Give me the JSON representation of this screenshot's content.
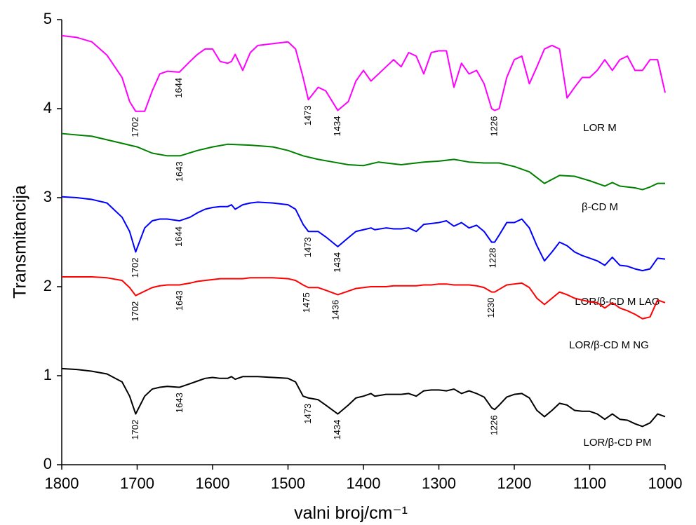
{
  "chart_data": {
    "type": "line",
    "y_label": "Transmitancija",
    "x_label": "valni broj/cm⁻¹",
    "xlim": [
      1800,
      1000
    ],
    "xticks": [
      1800,
      1700,
      1600,
      1500,
      1400,
      1300,
      1200,
      1100,
      1000
    ],
    "ylim": [
      0,
      5
    ],
    "yticks": [
      0,
      1,
      2,
      3,
      4,
      5
    ],
    "grid": false,
    "series": [
      {
        "name": "LOR M",
        "color": "#ff00ff",
        "x": [
          1800,
          1780,
          1760,
          1740,
          1720,
          1710,
          1702,
          1690,
          1680,
          1670,
          1660,
          1644,
          1630,
          1620,
          1610,
          1600,
          1590,
          1580,
          1575,
          1570,
          1560,
          1550,
          1540,
          1520,
          1500,
          1490,
          1480,
          1473,
          1460,
          1450,
          1434,
          1420,
          1410,
          1400,
          1390,
          1385,
          1370,
          1360,
          1350,
          1340,
          1330,
          1320,
          1310,
          1300,
          1290,
          1280,
          1270,
          1260,
          1250,
          1240,
          1230,
          1226,
          1220,
          1210,
          1200,
          1190,
          1180,
          1170,
          1160,
          1150,
          1140,
          1130,
          1120,
          1110,
          1100,
          1090,
          1080,
          1070,
          1060,
          1050,
          1040,
          1030,
          1020,
          1010,
          1000
        ],
        "values": [
          4.82,
          4.8,
          4.75,
          4.6,
          4.35,
          4.08,
          3.97,
          3.97,
          4.2,
          4.39,
          4.42,
          4.41,
          4.53,
          4.61,
          4.67,
          4.67,
          4.53,
          4.51,
          4.53,
          4.61,
          4.43,
          4.63,
          4.71,
          4.73,
          4.75,
          4.67,
          4.35,
          4.1,
          4.24,
          4.2,
          3.98,
          4.08,
          4.31,
          4.43,
          4.31,
          4.35,
          4.47,
          4.55,
          4.47,
          4.63,
          4.59,
          4.39,
          4.63,
          4.65,
          4.65,
          4.24,
          4.51,
          4.39,
          4.43,
          4.28,
          4.0,
          3.98,
          4.0,
          4.35,
          4.55,
          4.59,
          4.28,
          4.47,
          4.67,
          4.71,
          4.67,
          4.12,
          4.24,
          4.35,
          4.35,
          4.43,
          4.55,
          4.43,
          4.55,
          4.59,
          4.43,
          4.43,
          4.55,
          4.55,
          4.18
        ],
        "peaks": [
          1702,
          1644,
          1473,
          1434,
          1226
        ]
      },
      {
        "name": "β-CD M",
        "color": "#008000",
        "x": [
          1800,
          1760,
          1720,
          1700,
          1680,
          1660,
          1643,
          1620,
          1600,
          1580,
          1550,
          1520,
          1500,
          1480,
          1460,
          1440,
          1420,
          1400,
          1380,
          1350,
          1320,
          1300,
          1280,
          1260,
          1240,
          1220,
          1200,
          1180,
          1160,
          1140,
          1120,
          1100,
          1080,
          1070,
          1060,
          1040,
          1030,
          1020,
          1010,
          1000
        ],
        "values": [
          3.72,
          3.69,
          3.61,
          3.57,
          3.5,
          3.47,
          3.47,
          3.53,
          3.57,
          3.6,
          3.59,
          3.57,
          3.53,
          3.47,
          3.43,
          3.4,
          3.37,
          3.36,
          3.4,
          3.37,
          3.4,
          3.41,
          3.43,
          3.4,
          3.39,
          3.39,
          3.35,
          3.29,
          3.16,
          3.25,
          3.24,
          3.19,
          3.13,
          3.17,
          3.13,
          3.11,
          3.09,
          3.12,
          3.16,
          3.16
        ],
        "peaks": [
          1643
        ]
      },
      {
        "name": "LOR/β-CD M LAG",
        "color": "#0000ff",
        "x": [
          1800,
          1780,
          1760,
          1740,
          1720,
          1710,
          1702,
          1690,
          1680,
          1670,
          1660,
          1644,
          1630,
          1620,
          1610,
          1600,
          1590,
          1580,
          1575,
          1570,
          1560,
          1550,
          1540,
          1520,
          1500,
          1490,
          1480,
          1473,
          1460,
          1450,
          1434,
          1420,
          1410,
          1400,
          1390,
          1385,
          1370,
          1360,
          1350,
          1340,
          1330,
          1320,
          1310,
          1300,
          1290,
          1280,
          1270,
          1260,
          1250,
          1240,
          1230,
          1226,
          1220,
          1210,
          1200,
          1190,
          1180,
          1170,
          1160,
          1150,
          1140,
          1130,
          1120,
          1110,
          1100,
          1090,
          1080,
          1070,
          1060,
          1050,
          1040,
          1030,
          1020,
          1010,
          1000
        ],
        "values": [
          3.01,
          3.0,
          2.98,
          2.94,
          2.78,
          2.62,
          2.39,
          2.66,
          2.74,
          2.76,
          2.76,
          2.74,
          2.78,
          2.83,
          2.87,
          2.89,
          2.9,
          2.9,
          2.92,
          2.87,
          2.92,
          2.94,
          2.95,
          2.94,
          2.92,
          2.87,
          2.7,
          2.62,
          2.62,
          2.56,
          2.45,
          2.55,
          2.62,
          2.64,
          2.66,
          2.64,
          2.66,
          2.65,
          2.65,
          2.66,
          2.62,
          2.7,
          2.71,
          2.72,
          2.74,
          2.68,
          2.72,
          2.66,
          2.69,
          2.62,
          2.5,
          2.5,
          2.58,
          2.72,
          2.72,
          2.76,
          2.66,
          2.46,
          2.29,
          2.39,
          2.5,
          2.46,
          2.39,
          2.35,
          2.32,
          2.29,
          2.24,
          2.33,
          2.24,
          2.23,
          2.2,
          2.18,
          2.2,
          2.32,
          2.31
        ],
        "peaks": [
          1702,
          1644,
          1473,
          1434,
          1228
        ]
      },
      {
        "name": "LOR/β-CD M NG",
        "color": "#ff0000",
        "x": [
          1800,
          1780,
          1760,
          1740,
          1720,
          1710,
          1702,
          1690,
          1680,
          1670,
          1660,
          1644,
          1630,
          1620,
          1610,
          1600,
          1590,
          1580,
          1575,
          1570,
          1560,
          1550,
          1540,
          1520,
          1500,
          1490,
          1480,
          1473,
          1460,
          1450,
          1434,
          1420,
          1410,
          1400,
          1390,
          1385,
          1370,
          1360,
          1350,
          1340,
          1330,
          1320,
          1310,
          1300,
          1290,
          1280,
          1270,
          1260,
          1250,
          1240,
          1230,
          1226,
          1220,
          1210,
          1200,
          1190,
          1180,
          1170,
          1160,
          1150,
          1140,
          1130,
          1120,
          1110,
          1100,
          1090,
          1080,
          1070,
          1060,
          1050,
          1040,
          1030,
          1020,
          1010,
          1000
        ],
        "values": [
          2.11,
          2.11,
          2.11,
          2.1,
          2.07,
          1.99,
          1.9,
          1.95,
          1.99,
          2.01,
          2.02,
          2.02,
          2.04,
          2.06,
          2.07,
          2.08,
          2.09,
          2.09,
          2.09,
          2.09,
          2.09,
          2.1,
          2.1,
          2.1,
          2.09,
          2.07,
          2.02,
          1.99,
          1.99,
          1.96,
          1.91,
          1.95,
          1.98,
          1.99,
          2.0,
          2.0,
          2.0,
          2.01,
          2.01,
          2.01,
          2.01,
          2.02,
          2.02,
          2.03,
          2.03,
          2.02,
          2.02,
          2.02,
          2.01,
          1.99,
          1.94,
          1.94,
          1.97,
          2.02,
          2.03,
          2.04,
          1.99,
          1.87,
          1.8,
          1.87,
          1.94,
          1.91,
          1.87,
          1.85,
          1.83,
          1.82,
          1.76,
          1.82,
          1.76,
          1.73,
          1.69,
          1.64,
          1.66,
          1.85,
          1.82
        ],
        "peaks": [
          1702,
          1643,
          1475,
          1436,
          1230
        ]
      },
      {
        "name": "LOR/β-CD PM",
        "color": "#000000",
        "x": [
          1800,
          1780,
          1760,
          1740,
          1720,
          1710,
          1702,
          1690,
          1680,
          1670,
          1660,
          1644,
          1630,
          1620,
          1610,
          1600,
          1590,
          1580,
          1575,
          1570,
          1560,
          1550,
          1540,
          1520,
          1500,
          1490,
          1480,
          1473,
          1460,
          1450,
          1434,
          1420,
          1410,
          1400,
          1390,
          1385,
          1370,
          1360,
          1350,
          1340,
          1330,
          1320,
          1310,
          1300,
          1290,
          1280,
          1270,
          1260,
          1250,
          1240,
          1230,
          1226,
          1220,
          1210,
          1200,
          1190,
          1180,
          1170,
          1160,
          1150,
          1140,
          1130,
          1120,
          1110,
          1100,
          1090,
          1080,
          1070,
          1060,
          1050,
          1040,
          1030,
          1020,
          1010,
          1000
        ],
        "values": [
          1.08,
          1.07,
          1.05,
          1.02,
          0.93,
          0.77,
          0.57,
          0.77,
          0.85,
          0.87,
          0.88,
          0.87,
          0.91,
          0.94,
          0.97,
          0.98,
          0.97,
          0.97,
          0.99,
          0.96,
          0.99,
          0.99,
          0.99,
          0.98,
          0.97,
          0.93,
          0.77,
          0.75,
          0.73,
          0.67,
          0.57,
          0.67,
          0.75,
          0.77,
          0.8,
          0.77,
          0.79,
          0.79,
          0.79,
          0.8,
          0.77,
          0.83,
          0.84,
          0.84,
          0.83,
          0.85,
          0.8,
          0.83,
          0.8,
          0.76,
          0.64,
          0.62,
          0.67,
          0.76,
          0.79,
          0.8,
          0.75,
          0.61,
          0.54,
          0.61,
          0.69,
          0.67,
          0.61,
          0.6,
          0.6,
          0.57,
          0.51,
          0.57,
          0.51,
          0.5,
          0.46,
          0.43,
          0.47,
          0.57,
          0.54
        ],
        "peaks": [
          1702,
          1643,
          1473,
          1434,
          1226
        ]
      }
    ]
  }
}
